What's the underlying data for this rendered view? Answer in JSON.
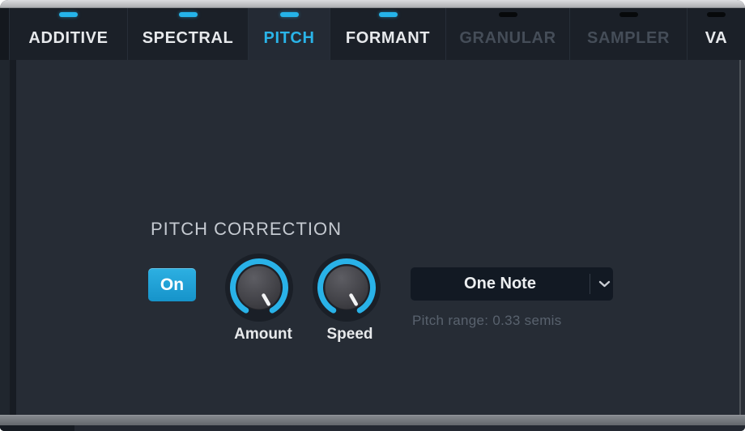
{
  "tabbar": {
    "tabs": [
      {
        "label": "ADDITIVE",
        "led": "on",
        "enabled": true,
        "selected": false
      },
      {
        "label": "SPECTRAL",
        "led": "on",
        "enabled": true,
        "selected": false
      },
      {
        "label": "PITCH",
        "led": "on",
        "enabled": true,
        "selected": true
      },
      {
        "label": "FORMANT",
        "led": "on",
        "enabled": true,
        "selected": false
      },
      {
        "label": "GRANULAR",
        "led": "off",
        "enabled": false,
        "selected": false
      },
      {
        "label": "SAMPLER",
        "led": "off",
        "enabled": false,
        "selected": false
      },
      {
        "label": "VA",
        "led": "off",
        "enabled": true,
        "selected": false
      }
    ]
  },
  "pitch_correction": {
    "title": "PITCH CORRECTION",
    "on_button_label": "On",
    "knobs": [
      {
        "label": "Amount",
        "value_percent": 100
      },
      {
        "label": "Speed",
        "value_percent": 100
      }
    ],
    "mode_dropdown": {
      "value": "One Note",
      "icon": "chevron-down-icon"
    },
    "hint": "Pitch range: 0.33 semis"
  },
  "colors": {
    "accent_blue": "#29b2e8",
    "led_on": "#25b4ea",
    "selected_tab_text": "#2ab4e8",
    "on_button": "#1ea6da",
    "tabbar_bg": "#1b2028",
    "panel_bg": "#262c35",
    "disabled_tab_text": "#454d58",
    "hint_text": "#59626e"
  }
}
